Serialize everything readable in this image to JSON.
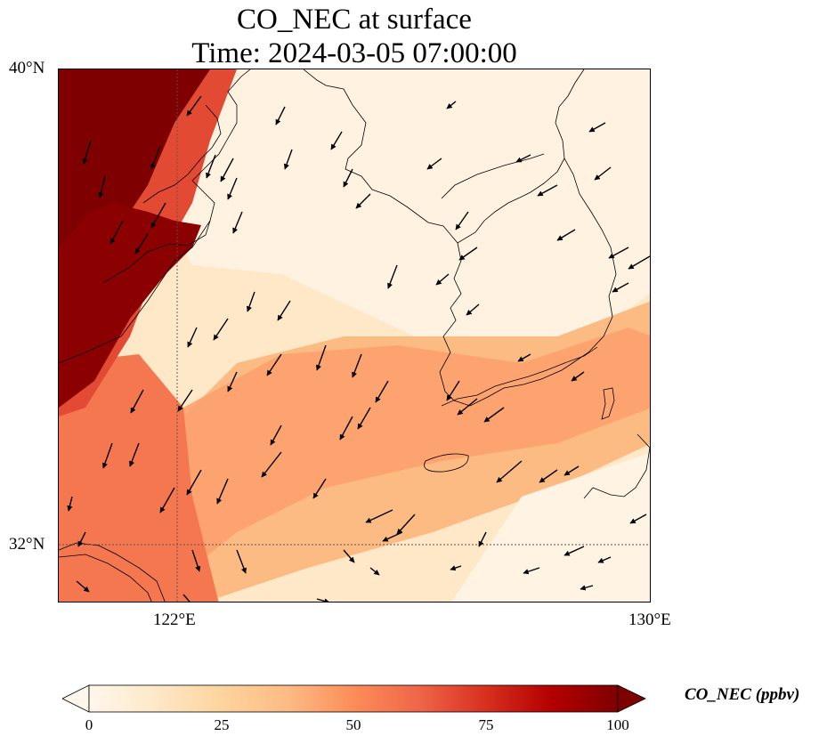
{
  "title": {
    "line1": "CO_NEC at surface",
    "line2": "Time: 2024-03-05 07:00:00"
  },
  "axes": {
    "y_ticks": [
      "40°N",
      "32°N"
    ],
    "x_ticks": [
      "122°E",
      "130°E"
    ]
  },
  "colorbar": {
    "label": "CO_NEC (ppbv)",
    "ticks": [
      "0",
      "25",
      "50",
      "75",
      "100"
    ],
    "min": 0,
    "max": 100,
    "extend": "both",
    "colormap": "OrRd",
    "colors": [
      "#fff7ec",
      "#fee8c8",
      "#fdd49e",
      "#fdbb84",
      "#fc8d59",
      "#ef6548",
      "#d7301f",
      "#b30000",
      "#7f0000"
    ]
  },
  "map": {
    "lon_range": [
      120,
      130
    ],
    "lat_range": [
      31,
      40
    ],
    "gridlines": [
      "122°E",
      "32°N"
    ],
    "layers": [
      "CO concentration field",
      "coastlines",
      "wind vectors"
    ]
  }
}
